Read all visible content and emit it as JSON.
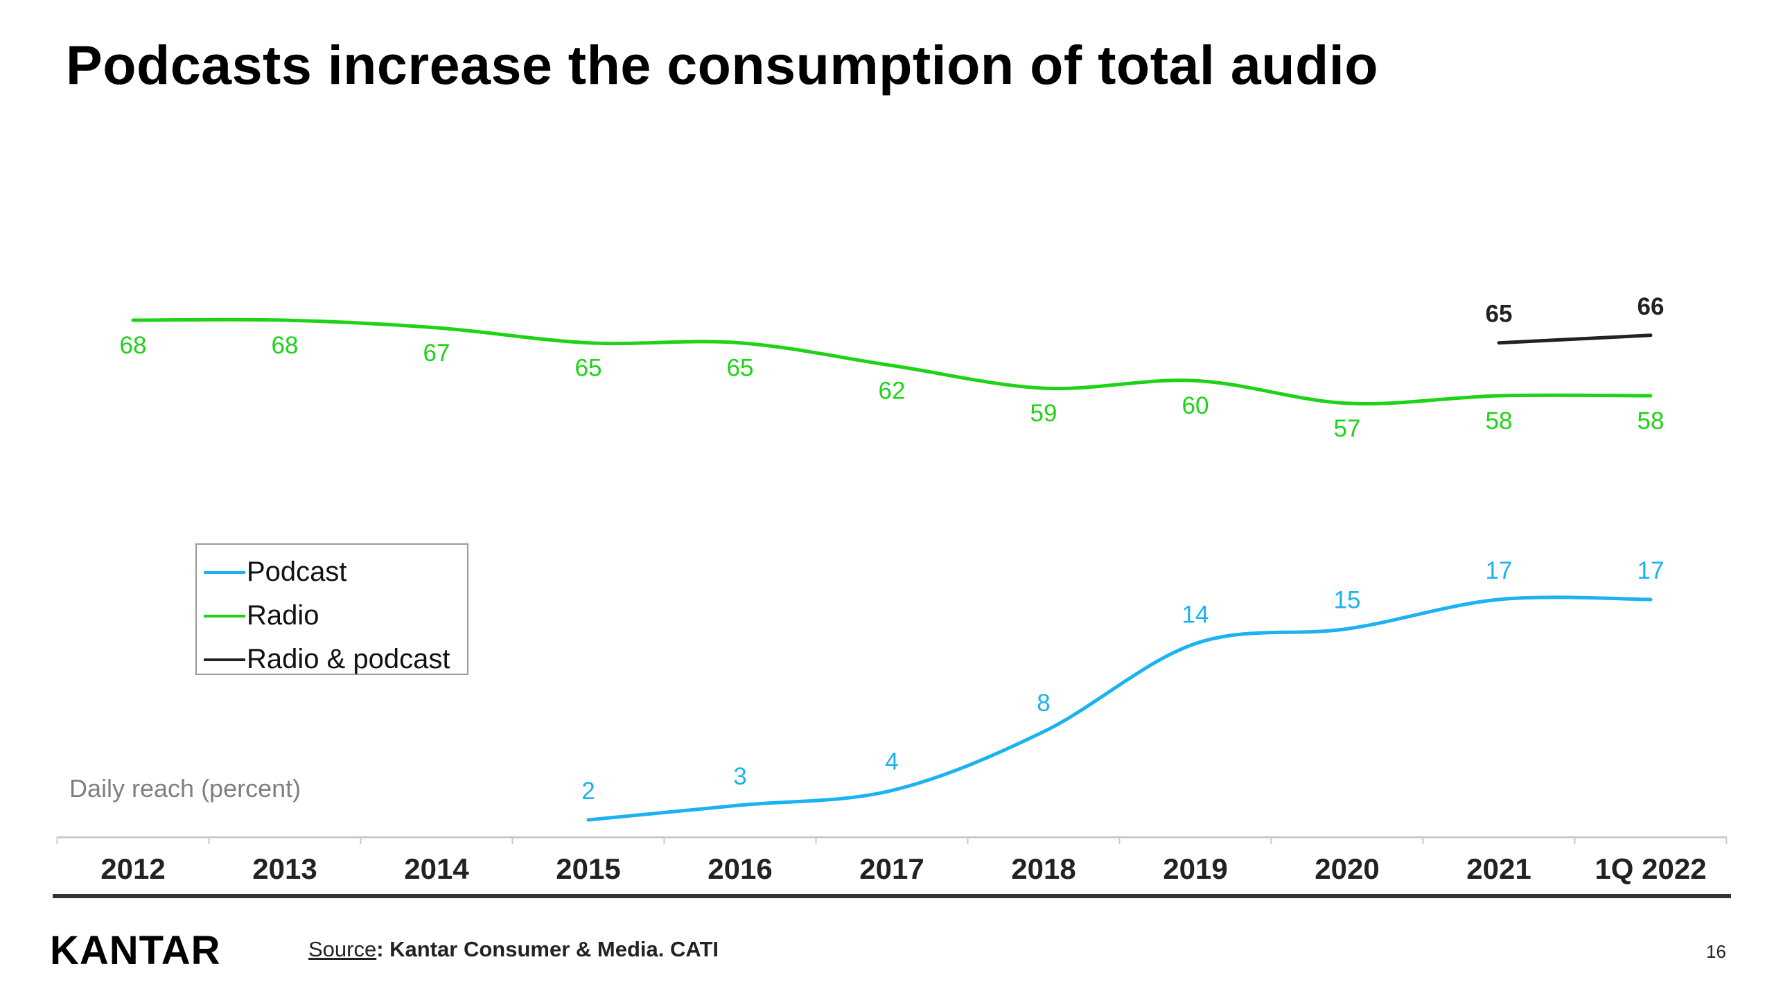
{
  "slide": {
    "title": "Podcasts increase the consumption of total audio",
    "y_caption": "Daily reach (percent)",
    "source_label": "Source",
    "source_text": ": Kantar Consumer & Media. CATI",
    "page_number": "16",
    "logo_text": "KANTAR"
  },
  "legend": {
    "items": [
      {
        "label": "Podcast",
        "color": "#1ab2f0"
      },
      {
        "label": "Radio",
        "color": "#1ed215"
      },
      {
        "label": "Radio & podcast",
        "color": "#222222"
      }
    ],
    "placement": "left-middle"
  },
  "chart_data": {
    "type": "line",
    "title": "Podcasts increase the consumption of total audio",
    "ylabel": "Daily reach (percent)",
    "xlabel": "",
    "categories": [
      "2012",
      "2013",
      "2014",
      "2015",
      "2016",
      "2017",
      "2018",
      "2019",
      "2020",
      "2021",
      "1Q 2022"
    ],
    "ylim": [
      0,
      70
    ],
    "grid": false,
    "series": [
      {
        "name": "Podcast",
        "color": "#1ab2f0",
        "values": [
          null,
          null,
          null,
          2,
          3,
          4,
          8,
          14,
          15,
          17,
          17
        ]
      },
      {
        "name": "Radio",
        "color": "#1ed215",
        "values": [
          68,
          68,
          67,
          65,
          65,
          62,
          59,
          60,
          57,
          58,
          58
        ]
      },
      {
        "name": "Radio & podcast",
        "color": "#222222",
        "values": [
          null,
          null,
          null,
          null,
          null,
          null,
          null,
          null,
          null,
          65,
          66
        ]
      }
    ]
  }
}
